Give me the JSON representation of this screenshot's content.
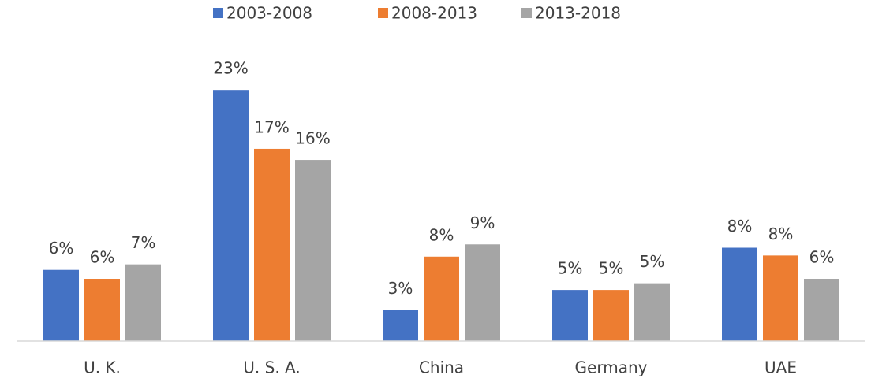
{
  "chart_data": {
    "type": "bar",
    "categories": [
      "U. K.",
      "U. S. A.",
      "China",
      "Germany",
      "UAE"
    ],
    "series": [
      {
        "name": "2003-2008",
        "color": "#4472c4",
        "values": [
          6.4,
          22.6,
          2.8,
          4.6,
          8.4
        ],
        "value_labels": [
          "6%",
          "23%",
          "3%",
          "5%",
          "8%"
        ]
      },
      {
        "name": "2008-2013",
        "color": "#ed7d31",
        "values": [
          5.6,
          17.3,
          7.6,
          4.6,
          7.7
        ],
        "value_labels": [
          "6%",
          "17%",
          "8%",
          "5%",
          "8%"
        ]
      },
      {
        "name": "2013-2018",
        "color": "#a5a5a5",
        "values": [
          6.9,
          16.3,
          8.7,
          5.2,
          5.6
        ],
        "value_labels": [
          "7%",
          "16%",
          "9%",
          "5%",
          "6%"
        ]
      }
    ],
    "ylim": [
      0,
      28
    ],
    "legend": "top"
  }
}
